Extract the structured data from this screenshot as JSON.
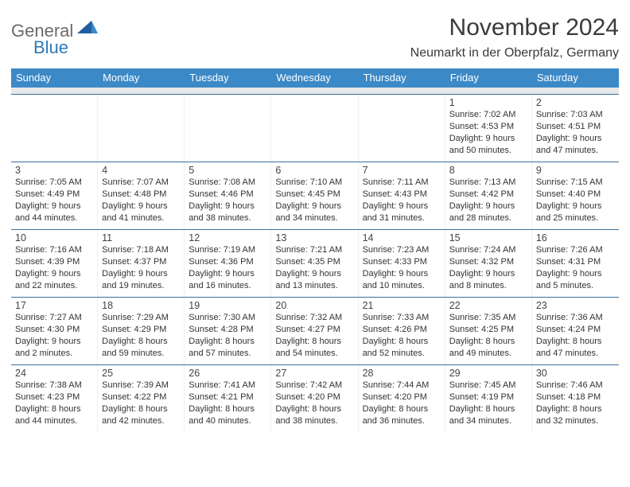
{
  "logo": {
    "line1": "General",
    "line2": "Blue"
  },
  "title": "November 2024",
  "subtitle": "Neumarkt in der Oberpfalz, Germany",
  "colors": {
    "header_bg": "#3b89c7",
    "header_text": "#ffffff",
    "divider": "#3b6f9e",
    "spacer": "#e8e8e8",
    "logo_gray": "#6b6b6b",
    "logo_blue": "#2e79b9"
  },
  "dow": [
    "Sunday",
    "Monday",
    "Tuesday",
    "Wednesday",
    "Thursday",
    "Friday",
    "Saturday"
  ],
  "weeks": [
    [
      null,
      null,
      null,
      null,
      null,
      {
        "n": "1",
        "sr": "7:02 AM",
        "ss": "4:53 PM",
        "dl": "9 hours and 50 minutes."
      },
      {
        "n": "2",
        "sr": "7:03 AM",
        "ss": "4:51 PM",
        "dl": "9 hours and 47 minutes."
      }
    ],
    [
      {
        "n": "3",
        "sr": "7:05 AM",
        "ss": "4:49 PM",
        "dl": "9 hours and 44 minutes."
      },
      {
        "n": "4",
        "sr": "7:07 AM",
        "ss": "4:48 PM",
        "dl": "9 hours and 41 minutes."
      },
      {
        "n": "5",
        "sr": "7:08 AM",
        "ss": "4:46 PM",
        "dl": "9 hours and 38 minutes."
      },
      {
        "n": "6",
        "sr": "7:10 AM",
        "ss": "4:45 PM",
        "dl": "9 hours and 34 minutes."
      },
      {
        "n": "7",
        "sr": "7:11 AM",
        "ss": "4:43 PM",
        "dl": "9 hours and 31 minutes."
      },
      {
        "n": "8",
        "sr": "7:13 AM",
        "ss": "4:42 PM",
        "dl": "9 hours and 28 minutes."
      },
      {
        "n": "9",
        "sr": "7:15 AM",
        "ss": "4:40 PM",
        "dl": "9 hours and 25 minutes."
      }
    ],
    [
      {
        "n": "10",
        "sr": "7:16 AM",
        "ss": "4:39 PM",
        "dl": "9 hours and 22 minutes."
      },
      {
        "n": "11",
        "sr": "7:18 AM",
        "ss": "4:37 PM",
        "dl": "9 hours and 19 minutes."
      },
      {
        "n": "12",
        "sr": "7:19 AM",
        "ss": "4:36 PM",
        "dl": "9 hours and 16 minutes."
      },
      {
        "n": "13",
        "sr": "7:21 AM",
        "ss": "4:35 PM",
        "dl": "9 hours and 13 minutes."
      },
      {
        "n": "14",
        "sr": "7:23 AM",
        "ss": "4:33 PM",
        "dl": "9 hours and 10 minutes."
      },
      {
        "n": "15",
        "sr": "7:24 AM",
        "ss": "4:32 PM",
        "dl": "9 hours and 8 minutes."
      },
      {
        "n": "16",
        "sr": "7:26 AM",
        "ss": "4:31 PM",
        "dl": "9 hours and 5 minutes."
      }
    ],
    [
      {
        "n": "17",
        "sr": "7:27 AM",
        "ss": "4:30 PM",
        "dl": "9 hours and 2 minutes."
      },
      {
        "n": "18",
        "sr": "7:29 AM",
        "ss": "4:29 PM",
        "dl": "8 hours and 59 minutes."
      },
      {
        "n": "19",
        "sr": "7:30 AM",
        "ss": "4:28 PM",
        "dl": "8 hours and 57 minutes."
      },
      {
        "n": "20",
        "sr": "7:32 AM",
        "ss": "4:27 PM",
        "dl": "8 hours and 54 minutes."
      },
      {
        "n": "21",
        "sr": "7:33 AM",
        "ss": "4:26 PM",
        "dl": "8 hours and 52 minutes."
      },
      {
        "n": "22",
        "sr": "7:35 AM",
        "ss": "4:25 PM",
        "dl": "8 hours and 49 minutes."
      },
      {
        "n": "23",
        "sr": "7:36 AM",
        "ss": "4:24 PM",
        "dl": "8 hours and 47 minutes."
      }
    ],
    [
      {
        "n": "24",
        "sr": "7:38 AM",
        "ss": "4:23 PM",
        "dl": "8 hours and 44 minutes."
      },
      {
        "n": "25",
        "sr": "7:39 AM",
        "ss": "4:22 PM",
        "dl": "8 hours and 42 minutes."
      },
      {
        "n": "26",
        "sr": "7:41 AM",
        "ss": "4:21 PM",
        "dl": "8 hours and 40 minutes."
      },
      {
        "n": "27",
        "sr": "7:42 AM",
        "ss": "4:20 PM",
        "dl": "8 hours and 38 minutes."
      },
      {
        "n": "28",
        "sr": "7:44 AM",
        "ss": "4:20 PM",
        "dl": "8 hours and 36 minutes."
      },
      {
        "n": "29",
        "sr": "7:45 AM",
        "ss": "4:19 PM",
        "dl": "8 hours and 34 minutes."
      },
      {
        "n": "30",
        "sr": "7:46 AM",
        "ss": "4:18 PM",
        "dl": "8 hours and 32 minutes."
      }
    ]
  ],
  "labels": {
    "sunrise": "Sunrise: ",
    "sunset": "Sunset: ",
    "daylight": "Daylight: "
  }
}
